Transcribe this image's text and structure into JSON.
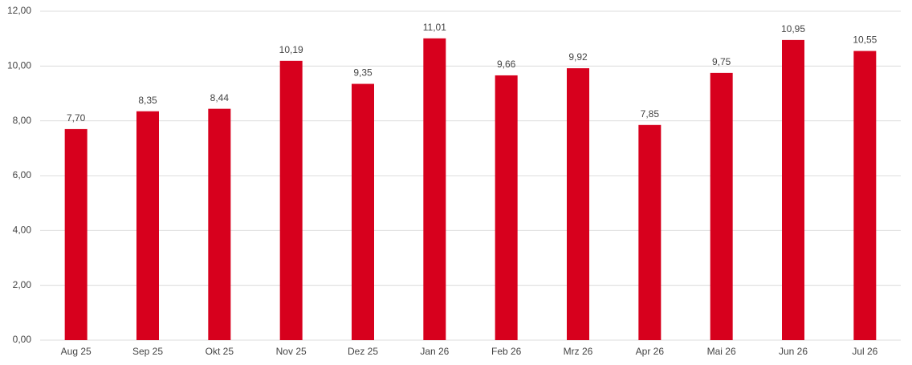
{
  "chart_data": {
    "type": "bar",
    "categories": [
      "Aug 25",
      "Sep 25",
      "Okt 25",
      "Nov 25",
      "Dez 25",
      "Jan 26",
      "Feb 26",
      "Mrz 26",
      "Apr 26",
      "Mai 26",
      "Jun 26",
      "Jul 26"
    ],
    "values": [
      7.7,
      8.35,
      8.44,
      10.19,
      9.35,
      11.01,
      9.66,
      9.92,
      7.85,
      9.75,
      10.95,
      10.55
    ],
    "value_labels": [
      "7,70",
      "8,35",
      "8,44",
      "10,19",
      "9,35",
      "11,01",
      "9,66",
      "9,92",
      "7,85",
      "9,75",
      "10,95",
      "10,55"
    ],
    "color": "#d7001d",
    "ylim": [
      0,
      12
    ],
    "yticks": [
      {
        "value": 0,
        "label": "0,00"
      },
      {
        "value": 2,
        "label": "2,00"
      },
      {
        "value": 4,
        "label": "4,00"
      },
      {
        "value": 6,
        "label": "6,00"
      },
      {
        "value": 8,
        "label": "8,00"
      },
      {
        "value": 10,
        "label": "10,00"
      },
      {
        "value": 12,
        "label": "12,00"
      }
    ],
    "grid": true
  }
}
